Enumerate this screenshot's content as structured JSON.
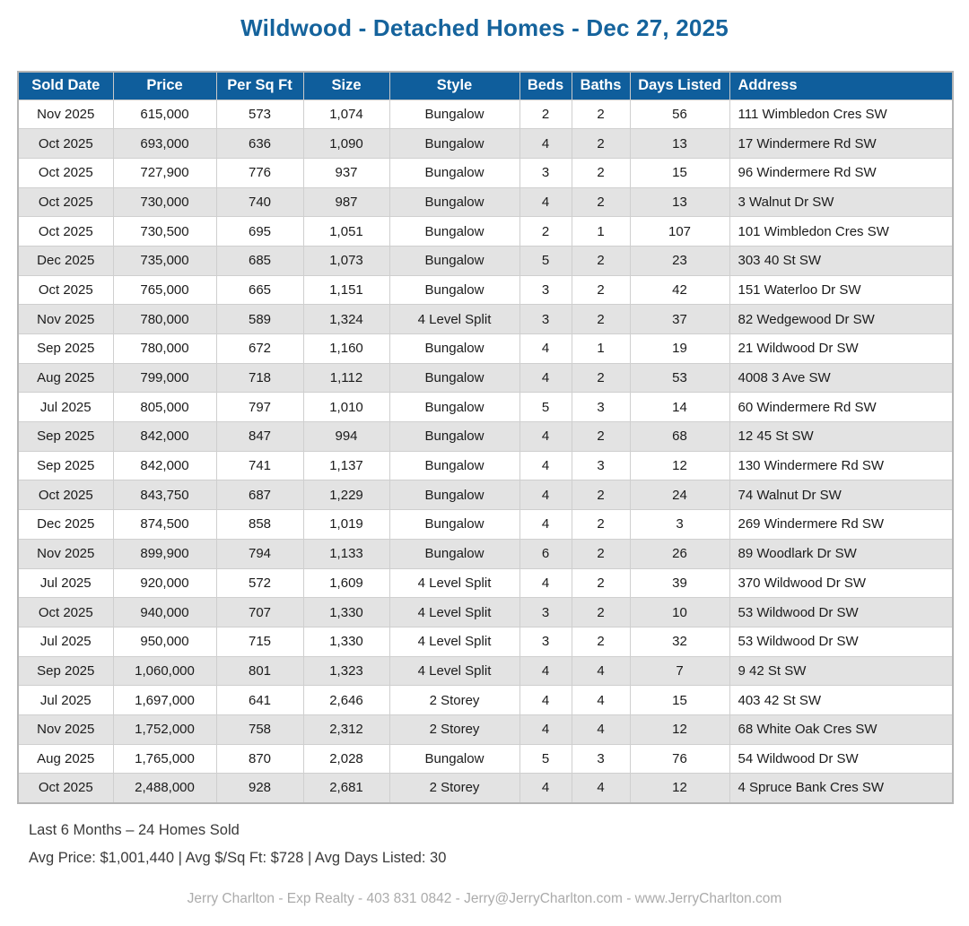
{
  "title": "Wildwood - Detached Homes - Dec 27, 2025",
  "colors": {
    "header_bg": "#0F5E9C",
    "title_text": "#15639C",
    "row_alt_bg": "#E3E3E3",
    "table_border": "#CFCFCF",
    "contact_text": "#ABABAB"
  },
  "table": {
    "columns": [
      {
        "key": "sold-date",
        "label": "Sold Date"
      },
      {
        "key": "price",
        "label": "Price"
      },
      {
        "key": "per-sq-ft",
        "label": "Per Sq Ft"
      },
      {
        "key": "size",
        "label": "Size"
      },
      {
        "key": "style",
        "label": "Style"
      },
      {
        "key": "beds",
        "label": "Beds"
      },
      {
        "key": "baths",
        "label": "Baths"
      },
      {
        "key": "days-listed",
        "label": "Days Listed"
      },
      {
        "key": "address",
        "label": "Address"
      }
    ],
    "rows": [
      [
        "Nov 2025",
        "615,000",
        "573",
        "1,074",
        "Bungalow",
        "2",
        "2",
        "56",
        "111 Wimbledon Cres SW"
      ],
      [
        "Oct 2025",
        "693,000",
        "636",
        "1,090",
        "Bungalow",
        "4",
        "2",
        "13",
        "17 Windermere Rd SW"
      ],
      [
        "Oct 2025",
        "727,900",
        "776",
        "937",
        "Bungalow",
        "3",
        "2",
        "15",
        "96 Windermere Rd SW"
      ],
      [
        "Oct 2025",
        "730,000",
        "740",
        "987",
        "Bungalow",
        "4",
        "2",
        "13",
        "3 Walnut Dr SW"
      ],
      [
        "Oct 2025",
        "730,500",
        "695",
        "1,051",
        "Bungalow",
        "2",
        "1",
        "107",
        "101 Wimbledon Cres SW"
      ],
      [
        "Dec 2025",
        "735,000",
        "685",
        "1,073",
        "Bungalow",
        "5",
        "2",
        "23",
        "303 40 St SW"
      ],
      [
        "Oct 2025",
        "765,000",
        "665",
        "1,151",
        "Bungalow",
        "3",
        "2",
        "42",
        "151 Waterloo Dr SW"
      ],
      [
        "Nov 2025",
        "780,000",
        "589",
        "1,324",
        "4 Level Split",
        "3",
        "2",
        "37",
        "82 Wedgewood Dr SW"
      ],
      [
        "Sep 2025",
        "780,000",
        "672",
        "1,160",
        "Bungalow",
        "4",
        "1",
        "19",
        "21 Wildwood Dr SW"
      ],
      [
        "Aug 2025",
        "799,000",
        "718",
        "1,112",
        "Bungalow",
        "4",
        "2",
        "53",
        "4008 3 Ave SW"
      ],
      [
        "Jul 2025",
        "805,000",
        "797",
        "1,010",
        "Bungalow",
        "5",
        "3",
        "14",
        "60 Windermere Rd SW"
      ],
      [
        "Sep 2025",
        "842,000",
        "847",
        "994",
        "Bungalow",
        "4",
        "2",
        "68",
        "12 45 St SW"
      ],
      [
        "Sep 2025",
        "842,000",
        "741",
        "1,137",
        "Bungalow",
        "4",
        "3",
        "12",
        "130 Windermere Rd SW"
      ],
      [
        "Oct 2025",
        "843,750",
        "687",
        "1,229",
        "Bungalow",
        "4",
        "2",
        "24",
        "74 Walnut Dr SW"
      ],
      [
        "Dec 2025",
        "874,500",
        "858",
        "1,019",
        "Bungalow",
        "4",
        "2",
        "3",
        "269 Windermere Rd SW"
      ],
      [
        "Nov 2025",
        "899,900",
        "794",
        "1,133",
        "Bungalow",
        "6",
        "2",
        "26",
        "89 Woodlark Dr SW"
      ],
      [
        "Jul 2025",
        "920,000",
        "572",
        "1,609",
        "4 Level Split",
        "4",
        "2",
        "39",
        "370 Wildwood Dr SW"
      ],
      [
        "Oct 2025",
        "940,000",
        "707",
        "1,330",
        "4 Level Split",
        "3",
        "2",
        "10",
        "53 Wildwood Dr SW"
      ],
      [
        "Jul 2025",
        "950,000",
        "715",
        "1,330",
        "4 Level Split",
        "3",
        "2",
        "32",
        "53 Wildwood Dr SW"
      ],
      [
        "Sep 2025",
        "1,060,000",
        "801",
        "1,323",
        "4 Level Split",
        "4",
        "4",
        "7",
        "9 42 St SW"
      ],
      [
        "Jul 2025",
        "1,697,000",
        "641",
        "2,646",
        "2 Storey",
        "4",
        "4",
        "15",
        "403 42 St SW"
      ],
      [
        "Nov 2025",
        "1,752,000",
        "758",
        "2,312",
        "2 Storey",
        "4",
        "4",
        "12",
        "68 White Oak Cres SW"
      ],
      [
        "Aug 2025",
        "1,765,000",
        "870",
        "2,028",
        "Bungalow",
        "5",
        "3",
        "76",
        "54 Wildwood Dr SW"
      ],
      [
        "Oct 2025",
        "2,488,000",
        "928",
        "2,681",
        "2 Storey",
        "4",
        "4",
        "12",
        "4 Spruce Bank Cres SW"
      ]
    ]
  },
  "summary": {
    "line1": "Last 6 Months – 24 Homes Sold",
    "line2": "Avg Price: $1,001,440 | Avg $/Sq Ft: $728 | Avg Days Listed: 30"
  },
  "footer": {
    "contact": "Jerry Charlton - Exp Realty - 403 831 0842 - Jerry@JerryCharlton.com - www.JerryCharlton.com"
  }
}
